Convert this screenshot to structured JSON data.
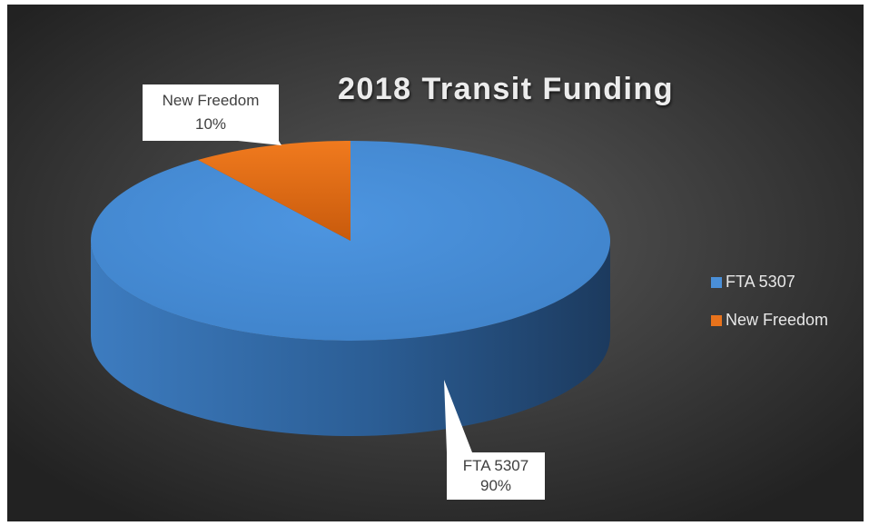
{
  "chart_data": {
    "type": "pie",
    "title": "2018 Transit Funding",
    "categories": [
      "FTA 5307",
      "New Freedom"
    ],
    "values": [
      90,
      10
    ],
    "value_labels": [
      "90%",
      "10%"
    ],
    "colors": [
      "#4a8fd8",
      "#e8731c"
    ],
    "legend": "right"
  }
}
